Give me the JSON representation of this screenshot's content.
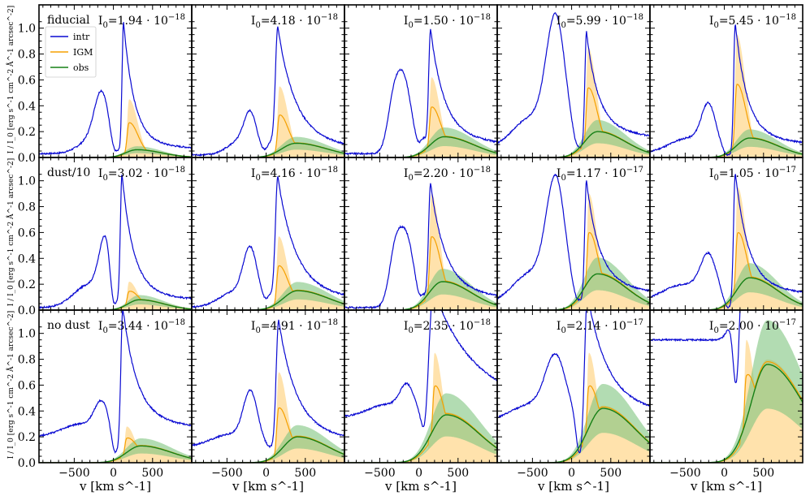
{
  "figure": {
    "ylabel": "I / I_0 [erg s^-1 cm^-2 Å^-1 arcsec^-2]",
    "xlabel": "v [km s^-1]",
    "legend": [
      "intr",
      "IGM",
      "obs"
    ],
    "colors": {
      "intr": "#0a0ad2",
      "igm": "#f5a000",
      "obs": "#168016",
      "igm_fill": "#ffd27f",
      "obs_fill": "#7fc47f"
    }
  },
  "chart_data": {
    "type": "line",
    "xlim": [
      -950,
      1000
    ],
    "ylim": [
      0,
      1.18
    ],
    "xticks": [
      -500,
      0,
      500
    ],
    "xtick_labels": [
      "−500",
      "0",
      "500"
    ],
    "yticks": [
      0.0,
      0.2,
      0.4,
      0.6,
      0.8,
      1.0
    ],
    "ytick_labels": [
      "0.0",
      "0.2",
      "0.4",
      "0.6",
      "0.8",
      "1.0"
    ],
    "grid": false,
    "legend_position": "upper-left",
    "rows": [
      {
        "label": "fiducial",
        "panels": [
          {
            "I0": "1.94 · 10^−18",
            "intr": {
              "base": 0.03,
              "blue": [
                [
                  -150,
                  0.38,
                  90
                ],
                [
                  -240,
                  0.12,
                  180
                ]
              ],
              "red_peak": 1.0,
              "red_center": 130,
              "red_width": 55,
              "tail": 0.08,
              "trough": 0.05
            },
            "obs": {
              "peak": 0.06,
              "center": 300,
              "width": 260
            },
            "igm_peak": 0.45,
            "igm_center": 200
          },
          {
            "I0": "4.18 · 10^−18",
            "intr": {
              "base": 0.02,
              "blue": [
                [
                  -200,
                  0.28,
                  80
                ],
                [
                  -350,
                  0.1,
                  150
                ]
              ],
              "red_peak": 0.98,
              "red_center": 150,
              "red_width": 90,
              "tail": 0.12,
              "trough": 0.12
            },
            "obs": {
              "peak": 0.11,
              "center": 380,
              "width": 330
            },
            "igm_peak": 0.55,
            "igm_center": 170
          },
          {
            "I0": "1.50 · 10^−18",
            "intr": {
              "base": 0.03,
              "blue": [
                [
                  -180,
                  0.52,
                  90
                ],
                [
                  -320,
                  0.38,
                  80
                ]
              ],
              "red_peak": 0.95,
              "red_center": 150,
              "red_width": 70,
              "tail": 0.15,
              "trough": 0.15
            },
            "obs": {
              "peak": 0.16,
              "center": 320,
              "width": 320
            },
            "igm_peak": 0.62,
            "igm_center": 160
          },
          {
            "I0": "5.99 · 10^−18",
            "intr": {
              "base": 0.06,
              "blue": [
                [
                  -200,
                  0.93,
                  120
                ],
                [
                  -500,
                  0.25,
                  250
                ]
              ],
              "red_peak": 0.9,
              "red_center": 190,
              "red_width": 60,
              "tail": 0.18,
              "trough": 0.08
            },
            "obs": {
              "peak": 0.2,
              "center": 330,
              "width": 300
            },
            "igm_peak": 0.85,
            "igm_center": 210
          },
          {
            "I0": "5.45 · 10^−18",
            "intr": {
              "base": 0.03,
              "blue": [
                [
                  -200,
                  0.32,
                  90
                ],
                [
                  -450,
                  0.12,
                  250
                ]
              ],
              "red_peak": 1.0,
              "red_center": 140,
              "red_width": 60,
              "tail": 0.15,
              "trough": 0.02
            },
            "obs": {
              "peak": 0.15,
              "center": 320,
              "width": 300
            },
            "igm_peak": 0.95,
            "igm_center": 160
          }
        ]
      },
      {
        "label": "dust/10",
        "panels": [
          {
            "I0": "3.02 · 10^−18",
            "intr": {
              "base": 0.02,
              "blue": [
                [
                  -100,
                  0.45,
                  80
                ],
                [
                  -300,
                  0.18,
                  200
                ]
              ],
              "red_peak": 1.0,
              "red_center": 110,
              "red_width": 60,
              "tail": 0.12,
              "trough": 0.05
            },
            "obs": {
              "peak": 0.08,
              "center": 330,
              "width": 260
            },
            "igm_peak": 0.22,
            "igm_center": 200
          },
          {
            "I0": "4.16 · 10^−18",
            "intr": {
              "base": 0.02,
              "blue": [
                [
                  -200,
                  0.4,
                  90
                ],
                [
                  -400,
                  0.12,
                  200
                ]
              ],
              "red_peak": 1.0,
              "red_center": 150,
              "red_width": 90,
              "tail": 0.14,
              "trough": 0.12
            },
            "obs": {
              "peak": 0.15,
              "center": 400,
              "width": 330
            },
            "igm_peak": 0.57,
            "igm_center": 160
          },
          {
            "I0": "2.20 · 10^−18",
            "intr": {
              "base": 0.02,
              "blue": [
                [
                  -150,
                  0.5,
                  90
                ],
                [
                  -300,
                  0.42,
                  80
                ]
              ],
              "red_peak": 0.95,
              "red_center": 150,
              "red_width": 75,
              "tail": 0.15,
              "trough": 0.12
            },
            "obs": {
              "peak": 0.22,
              "center": 300,
              "width": 310
            },
            "igm_peak": 0.9,
            "igm_center": 160
          },
          {
            "I0": "1.17 · 10^−17",
            "intr": {
              "base": 0.04,
              "blue": [
                [
                  -200,
                  0.88,
                  120
                ],
                [
                  -500,
                  0.25,
                  250
                ]
              ],
              "red_peak": 0.95,
              "red_center": 190,
              "red_width": 65,
              "tail": 0.18,
              "trough": 0.08
            },
            "obs": {
              "peak": 0.28,
              "center": 330,
              "width": 310
            },
            "igm_peak": 0.9,
            "igm_center": 220
          },
          {
            "I0": "1.05 · 10^−17",
            "intr": {
              "base": 0.05,
              "blue": [
                [
                  -200,
                  0.3,
                  100
                ],
                [
                  -500,
                  0.15,
                  300
                ]
              ],
              "red_peak": 1.0,
              "red_center": 140,
              "red_width": 65,
              "tail": 0.15,
              "trough": 0.02
            },
            "obs": {
              "peak": 0.25,
              "center": 320,
              "width": 300
            },
            "igm_peak": 0.95,
            "igm_center": 170
          }
        ]
      },
      {
        "label": "no dust",
        "panels": [
          {
            "I0": "3.44 · 10^−18",
            "intr": {
              "base": 0.2,
              "blue": [
                [
                  -150,
                  0.22,
                  90
                ],
                [
                  -400,
                  0.1,
                  250
                ]
              ],
              "red_peak": 1.0,
              "red_center": 120,
              "red_width": 70,
              "tail": 0.15,
              "trough": 0.08
            },
            "obs": {
              "peak": 0.13,
              "center": 350,
              "width": 330
            },
            "igm_peak": 0.28,
            "igm_center": 170
          },
          {
            "I0": "4.91 · 10^−18",
            "intr": {
              "base": 0.12,
              "blue": [
                [
                  -200,
                  0.38,
                  90
                ],
                [
                  -450,
                  0.1,
                  250
                ]
              ],
              "red_peak": 0.98,
              "red_center": 160,
              "red_width": 90,
              "tail": 0.12,
              "trough": 0.12
            },
            "obs": {
              "peak": 0.2,
              "center": 400,
              "width": 330
            },
            "igm_peak": 0.7,
            "igm_center": 160
          },
          {
            "I0": "2.35 · 10^−18",
            "intr": {
              "base": 0.35,
              "blue": [
                [
                  -150,
                  0.2,
                  90
                ],
                [
                  -400,
                  0.1,
                  250
                ]
              ],
              "red_peak": 1.0,
              "red_center": 180,
              "red_width": 180,
              "tail": 0.3,
              "trough": 0.05
            },
            "obs": {
              "peak": 0.37,
              "center": 350,
              "width": 350
            },
            "igm_peak": 0.85,
            "igm_center": 200
          },
          {
            "I0": "2.14 · 10^−17",
            "intr": {
              "base": 0.3,
              "blue": [
                [
                  -200,
                  0.45,
                  130
                ],
                [
                  -500,
                  0.15,
                  300
                ]
              ],
              "red_peak": 1.0,
              "red_center": 200,
              "red_width": 100,
              "tail": 0.18,
              "trough": 0.05
            },
            "obs": {
              "peak": 0.42,
              "center": 400,
              "width": 350
            },
            "igm_peak": 0.85,
            "igm_center": 220
          },
          {
            "I0": "2.00 · 10^−17",
            "intr": {
              "base": 0.95,
              "blue": [
                [
                  -600,
                  0.0,
                  300
                ]
              ],
              "red_peak": 1.0,
              "red_center": 250,
              "red_width": 280,
              "tail": 0.55,
              "trough": 0.0
            },
            "obs": {
              "peak": 0.76,
              "center": 550,
              "width": 380
            },
            "igm_peak": 0.95,
            "igm_center": 280
          }
        ]
      }
    ]
  }
}
